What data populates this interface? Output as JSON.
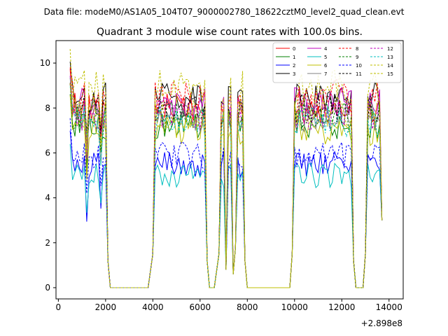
{
  "header": {
    "data_file_line": "Data file: modeM0/AS1A05_104T07_9000002780_18622cztM0_level2_quad_clean.evt"
  },
  "chart_data": {
    "type": "line",
    "title": "Quadrant 3 module wise count rates with 100.0s bins.",
    "xlabel": "",
    "ylabel": "",
    "x_offset_label": "+2.898e8",
    "xlim": [
      -100,
      14600
    ],
    "ylim": [
      -0.5,
      11
    ],
    "xticks": [
      0,
      2000,
      4000,
      6000,
      8000,
      10000,
      12000,
      14000
    ],
    "xtick_labels": [
      "0",
      "2000",
      "4000",
      "6000",
      "8000",
      "10000",
      "12000",
      "14000"
    ],
    "yticks": [
      0,
      2,
      4,
      6,
      8,
      10
    ],
    "ytick_labels": [
      "0",
      "2",
      "4",
      "6",
      "8",
      "10"
    ],
    "legend_placement": "top-right",
    "segments": [
      {
        "start": 500,
        "end": 2000
      },
      {
        "start": 4100,
        "end": 6200
      },
      {
        "start": 6900,
        "end": 7000
      },
      {
        "start": 7200,
        "end": 7300
      },
      {
        "start": 7600,
        "end": 7800
      },
      {
        "start": 10000,
        "end": 12400
      },
      {
        "start": 13100,
        "end": 13600
      }
    ],
    "gap_points": [
      {
        "x": 2100,
        "y": 1.2
      },
      {
        "x": 2200,
        "y": 0
      },
      {
        "x": 3800,
        "y": 0
      },
      {
        "x": 4000,
        "y": 1.5
      },
      {
        "x": 6300,
        "y": 1.2
      },
      {
        "x": 6400,
        "y": 0
      },
      {
        "x": 6600,
        "y": 0
      },
      {
        "x": 6800,
        "y": 1.5
      },
      {
        "x": 7100,
        "y": 0.8
      },
      {
        "x": 7400,
        "y": 0.6
      },
      {
        "x": 7500,
        "y": 1.8
      },
      {
        "x": 7900,
        "y": 1.2
      },
      {
        "x": 8000,
        "y": 0
      },
      {
        "x": 9800,
        "y": 0
      },
      {
        "x": 9900,
        "y": 1.5
      },
      {
        "x": 12500,
        "y": 1.2
      },
      {
        "x": 12600,
        "y": 0
      },
      {
        "x": 12900,
        "y": 0
      },
      {
        "x": 13000,
        "y": 1.5
      },
      {
        "x": 13700,
        "y": 3.0
      }
    ],
    "series": [
      {
        "name": "0",
        "color": "#ff0000",
        "dash": "solid",
        "level": 8.0
      },
      {
        "name": "1",
        "color": "#008000",
        "dash": "solid",
        "level": 7.3
      },
      {
        "name": "2",
        "color": "#0000ff",
        "dash": "solid",
        "level": 5.5
      },
      {
        "name": "3",
        "color": "#000000",
        "dash": "solid",
        "level": 8.4
      },
      {
        "name": "4",
        "color": "#bf00bf",
        "dash": "solid",
        "level": 8.2
      },
      {
        "name": "5",
        "color": "#00bfbf",
        "dash": "solid",
        "level": 5.0
      },
      {
        "name": "6",
        "color": "#bfbf00",
        "dash": "solid",
        "level": 7.0
      },
      {
        "name": "7",
        "color": "#808080",
        "dash": "solid",
        "level": 7.6
      },
      {
        "name": "8",
        "color": "#ff0000",
        "dash": "dashed",
        "level": 8.5
      },
      {
        "name": "9",
        "color": "#008000",
        "dash": "dashed",
        "level": 7.6
      },
      {
        "name": "10",
        "color": "#0000ff",
        "dash": "dashed",
        "level": 5.9
      },
      {
        "name": "11",
        "color": "#000000",
        "dash": "dashed",
        "level": 7.9
      },
      {
        "name": "12",
        "color": "#bf00bf",
        "dash": "dashed",
        "level": 7.7
      },
      {
        "name": "13",
        "color": "#00bfbf",
        "dash": "dashed",
        "level": 7.4
      },
      {
        "name": "14",
        "color": "#bfbf00",
        "dash": "dashed",
        "level": 8.9
      },
      {
        "name": "15",
        "color": "#bfbf00",
        "dash": "dashed",
        "level": 7.8
      }
    ]
  }
}
